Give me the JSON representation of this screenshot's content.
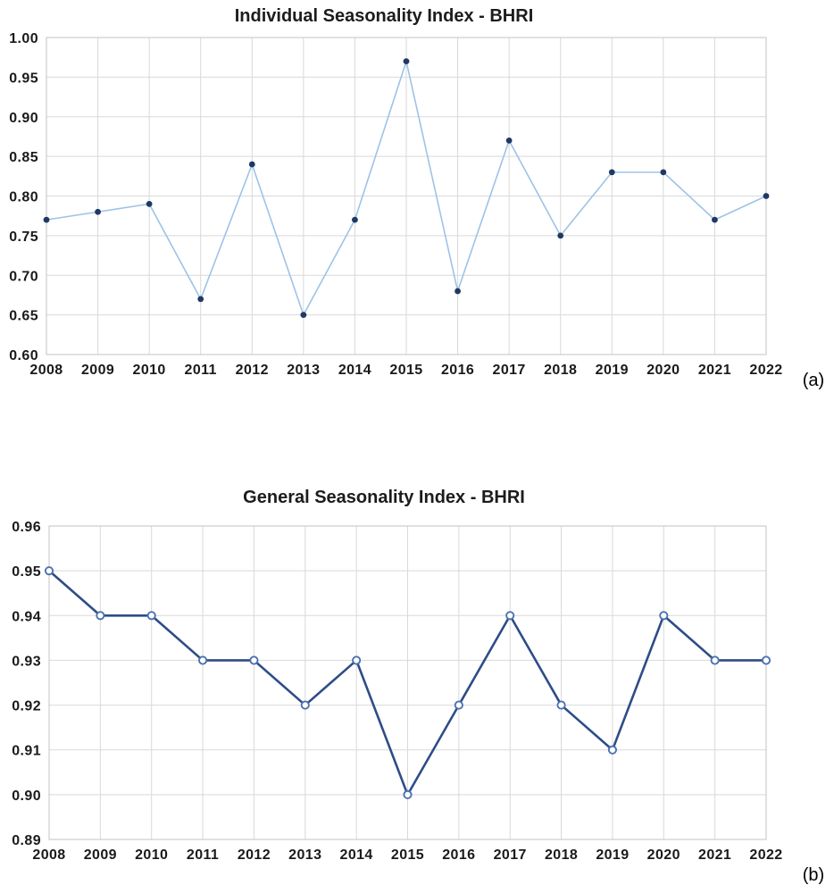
{
  "page": {
    "background": "#ffffff"
  },
  "chart_data": [
    {
      "id": "a",
      "type": "line",
      "title": "Individual Seasonality Index - BHRI",
      "panel_label": "(a)",
      "categories": [
        "2008",
        "2009",
        "2010",
        "2011",
        "2012",
        "2013",
        "2014",
        "2015",
        "2016",
        "2017",
        "2018",
        "2019",
        "2020",
        "2021",
        "2022"
      ],
      "values": [
        0.77,
        0.78,
        0.79,
        0.67,
        0.84,
        0.65,
        0.77,
        0.97,
        0.68,
        0.87,
        0.75,
        0.83,
        0.83,
        0.77,
        0.8
      ],
      "xlabel": "",
      "ylabel": "",
      "ylim": [
        0.6,
        1.0
      ],
      "ytick_step": 0.05,
      "yticks": [
        "1.00",
        "0.95",
        "0.90",
        "0.85",
        "0.80",
        "0.75",
        "0.70",
        "0.65",
        "0.60"
      ],
      "grid": "on",
      "legend": "none",
      "line_color": "#9dc3e6",
      "marker": "filled-circle",
      "marker_color": "#1f3864"
    },
    {
      "id": "b",
      "type": "line",
      "title": "General Seasonality Index - BHRI",
      "panel_label": "(b)",
      "categories": [
        "2008",
        "2009",
        "2010",
        "2011",
        "2012",
        "2013",
        "2014",
        "2015",
        "2016",
        "2017",
        "2018",
        "2019",
        "2020",
        "2021",
        "2022"
      ],
      "values": [
        0.95,
        0.94,
        0.94,
        0.93,
        0.93,
        0.92,
        0.93,
        0.9,
        0.92,
        0.94,
        0.92,
        0.91,
        0.94,
        0.93,
        0.93
      ],
      "xlabel": "",
      "ylabel": "",
      "ylim": [
        0.89,
        0.96
      ],
      "ytick_step": 0.01,
      "yticks": [
        "0.96",
        "0.95",
        "0.94",
        "0.93",
        "0.92",
        "0.91",
        "0.90",
        "0.89"
      ],
      "grid": "on",
      "legend": "none",
      "line_color": "#2e4c87",
      "marker": "open-circle",
      "marker_color": "#4a72ad"
    }
  ]
}
